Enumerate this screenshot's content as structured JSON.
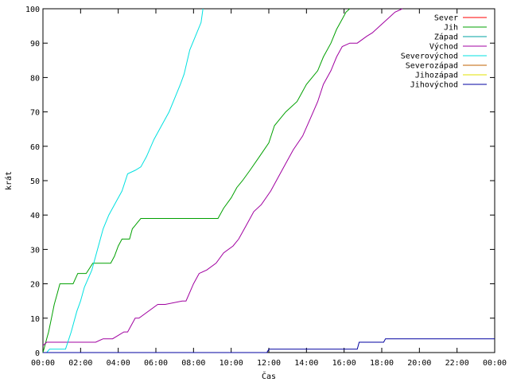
{
  "chart_data": {
    "type": "line",
    "xlabel": "Čas",
    "ylabel": "krát",
    "xlim": [
      0,
      24
    ],
    "ylim": [
      0,
      100
    ],
    "x_ticks": [
      0,
      2,
      4,
      6,
      8,
      10,
      12,
      14,
      16,
      18,
      20,
      22,
      24
    ],
    "x_tick_labels": [
      "00:00",
      "02:00",
      "04:00",
      "06:00",
      "08:00",
      "10:00",
      "12:00",
      "14:00",
      "16:00",
      "18:00",
      "20:00",
      "22:00",
      "00:00"
    ],
    "y_ticks": [
      0,
      10,
      20,
      30,
      40,
      50,
      60,
      70,
      80,
      90,
      100
    ],
    "grid": false,
    "legend_position": "top-right",
    "series": [
      {
        "name": "Sever",
        "color": "#ff0000",
        "x": [],
        "y": []
      },
      {
        "name": "Jih",
        "color": "#00a000",
        "x": [
          0.0,
          0.1,
          0.2,
          0.3,
          0.45,
          0.6,
          0.75,
          0.9,
          1.2,
          1.6,
          1.85,
          2.3,
          2.65,
          3.0,
          3.1,
          3.6,
          3.8,
          4.0,
          4.2,
          4.6,
          4.75,
          4.9,
          5.05,
          5.2,
          9.3,
          9.6,
          10.0,
          10.3,
          10.6,
          11.0,
          11.5,
          12.0,
          12.3,
          12.6,
          12.9,
          13.5,
          14.0,
          14.3,
          14.6,
          14.9,
          15.3,
          15.6,
          15.9,
          16.1,
          16.3
        ],
        "y": [
          0,
          2,
          4,
          6,
          10,
          14,
          17,
          20,
          20,
          20,
          23,
          23,
          26,
          26,
          26,
          26,
          28,
          31,
          33,
          33,
          36,
          37,
          38,
          39,
          39,
          42,
          45,
          48,
          50,
          53,
          57,
          61,
          66,
          68,
          70,
          73,
          78,
          80,
          82,
          86,
          90,
          94,
          97,
          99,
          100
        ]
      },
      {
        "name": "Západ",
        "color": "#00a0a0",
        "x": [],
        "y": []
      },
      {
        "name": "Východ",
        "color": "#a000a0",
        "x": [
          0.0,
          0.2,
          1.0,
          2.8,
          3.2,
          3.7,
          4.3,
          4.5,
          4.9,
          5.1,
          6.1,
          6.5,
          7.4,
          7.6,
          8.0,
          8.3,
          8.7,
          9.2,
          9.6,
          10.1,
          10.4,
          10.8,
          11.2,
          11.6,
          12.1,
          12.5,
          12.9,
          13.3,
          13.8,
          14.2,
          14.6,
          14.9,
          15.3,
          15.6,
          15.9,
          16.3,
          16.7,
          17.2,
          17.5,
          17.9,
          18.3,
          18.7,
          19.1
        ],
        "y": [
          2,
          3,
          3,
          3,
          4,
          4,
          6,
          6,
          10,
          10,
          14,
          14,
          15,
          15,
          20,
          23,
          24,
          26,
          29,
          31,
          33,
          37,
          41,
          43,
          47,
          51,
          55,
          59,
          63,
          68,
          73,
          78,
          82,
          86,
          89,
          90,
          90,
          92,
          93,
          95,
          97,
          99,
          100
        ]
      },
      {
        "name": "Severovýchod",
        "color": "#00e0e0",
        "x": [
          0.2,
          0.35,
          0.5,
          1.2,
          1.5,
          1.8,
          2.0,
          2.2,
          2.6,
          2.9,
          3.2,
          3.5,
          3.9,
          4.2,
          4.5,
          4.9,
          5.2,
          5.5,
          5.9,
          6.3,
          6.7,
          7.0,
          7.3,
          7.5,
          7.8,
          8.1,
          8.4,
          8.5
        ],
        "y": [
          0,
          1,
          1,
          1,
          6,
          12,
          15,
          19,
          24,
          30,
          36,
          40,
          44,
          47,
          52,
          53,
          54,
          57,
          62,
          66,
          70,
          74,
          78,
          81,
          88,
          92,
          96,
          100
        ]
      },
      {
        "name": "Severozápad",
        "color": "#c06000",
        "x": [],
        "y": []
      },
      {
        "name": "Jihozápad",
        "color": "#e0e000",
        "x": [],
        "y": []
      },
      {
        "name": "Jihovýchod",
        "color": "#0000a0",
        "x": [
          0.0,
          11.9,
          12.0,
          16.7,
          16.8,
          18.1,
          18.2,
          24.0
        ],
        "y": [
          0,
          0,
          1,
          1,
          3,
          3,
          4,
          4
        ]
      }
    ]
  }
}
